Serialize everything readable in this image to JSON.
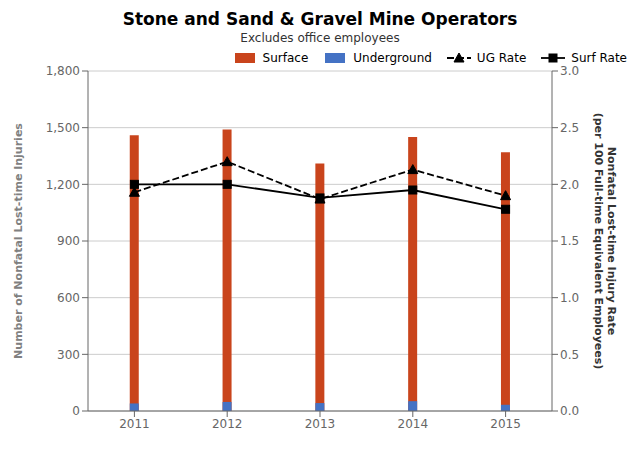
{
  "chart_data": {
    "type": "bar",
    "title": "Stone and Sand & Gravel Mine Operators",
    "subtitle": "Excludes office employees",
    "categories": [
      "2011",
      "2012",
      "2013",
      "2014",
      "2015"
    ],
    "series": [
      {
        "name": "Surface",
        "type": "bar",
        "color": "#C9441C",
        "values": [
          1460,
          1490,
          1310,
          1450,
          1370
        ]
      },
      {
        "name": "Underground",
        "type": "bar",
        "color": "#4472C4",
        "values": [
          40,
          48,
          42,
          52,
          33
        ]
      },
      {
        "name": "UG Rate",
        "type": "line",
        "axis": "y2",
        "color": "#000000",
        "marker": "triangle",
        "line_style": "dashed",
        "values": [
          1.93,
          2.2,
          1.87,
          2.13,
          1.9
        ]
      },
      {
        "name": "Surf Rate",
        "type": "line",
        "axis": "y2",
        "color": "#000000",
        "marker": "square",
        "line_style": "solid",
        "values": [
          2.0,
          2.0,
          1.88,
          1.95,
          1.78
        ]
      }
    ],
    "ylabel": "Number of Nonfatal Lost-time Injuries",
    "y2label": "Nonfatal Lost-time Injury Rate\n(per 100 Full-time Equivalent Employees)",
    "ylim": [
      0,
      1800
    ],
    "yticks": [
      0,
      300,
      600,
      900,
      {
        "value": 1200,
        "label": "1,200"
      },
      {
        "value": 1500,
        "label": "1,500"
      },
      {
        "value": 1800,
        "label": "1,800"
      }
    ],
    "y2lim": [
      0,
      3.0
    ],
    "y2ticks": [
      {
        "value": 0,
        "label": "0.0"
      },
      0.5,
      {
        "value": 1.0,
        "label": "1.0"
      },
      1.5,
      {
        "value": 2.0,
        "label": "2.0"
      },
      2.5,
      {
        "value": 3.0,
        "label": "3.0"
      }
    ],
    "grid": true,
    "legend": "upper right"
  }
}
